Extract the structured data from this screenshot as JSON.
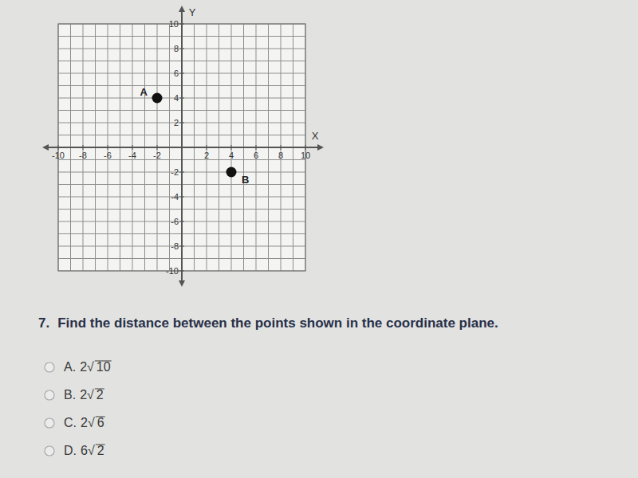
{
  "chart_data": {
    "type": "scatter",
    "x_label": "X",
    "y_label": "Y",
    "x": [
      -2,
      4
    ],
    "values": [
      4,
      -2
    ],
    "point_labels": [
      "A",
      "B"
    ],
    "color": "#111111",
    "marker": "circle",
    "xlim": [
      -10,
      10
    ],
    "ylim": [
      -10,
      10
    ],
    "xticks": [
      -10,
      -8,
      -6,
      -4,
      -2,
      2,
      4,
      6,
      8,
      10
    ],
    "yticks": [
      -10,
      -8,
      -6,
      -4,
      -2,
      2,
      4,
      6,
      8,
      10
    ],
    "x_grid": [
      -10,
      -9,
      -8,
      -7,
      -6,
      -5,
      -4,
      -3,
      -2,
      -1,
      0,
      1,
      2,
      3,
      4,
      5,
      6,
      7,
      8,
      9,
      10
    ],
    "y_grid": [
      -10,
      -9,
      -8,
      -7,
      -6,
      -5,
      -4,
      -3,
      -2,
      -1,
      0,
      1,
      2,
      3,
      4,
      5,
      6,
      7,
      8,
      9,
      10
    ],
    "grid": true
  },
  "question": {
    "number": "7.",
    "text": "Find the distance between the points shown in the coordinate plane.",
    "radical": "√",
    "options": [
      {
        "letter": "A.",
        "coefficient": "2",
        "radicand": "10"
      },
      {
        "letter": "B.",
        "coefficient": "2",
        "radicand": "2"
      },
      {
        "letter": "C.",
        "coefficient": "2",
        "radicand": "6"
      },
      {
        "letter": "D.",
        "coefficient": "6",
        "radicand": "2"
      }
    ]
  }
}
